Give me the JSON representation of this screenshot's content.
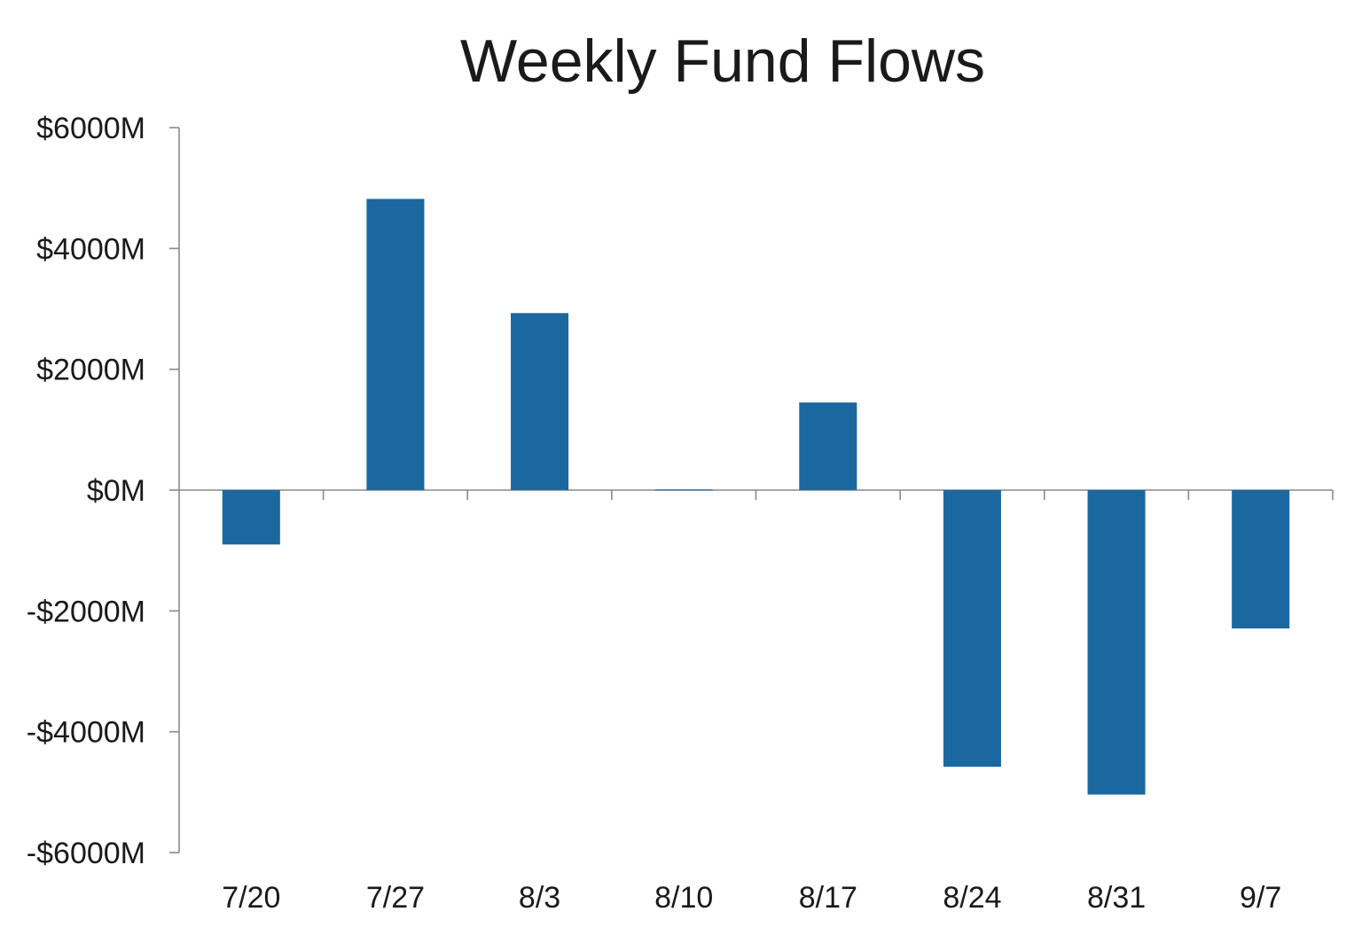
{
  "chart_data": {
    "type": "bar",
    "title": "Weekly Fund Flows",
    "xlabel": "",
    "ylabel": "",
    "categories": [
      "7/20",
      "7/27",
      "8/3",
      "8/10",
      "8/17",
      "8/24",
      "8/31",
      "9/7"
    ],
    "values": [
      -900,
      4820,
      2930,
      10,
      1450,
      -4580,
      -5040,
      -2290
    ],
    "unit": "M",
    "ylim": [
      -6000,
      6000
    ],
    "yticks": [
      6000,
      4000,
      2000,
      0,
      -2000,
      -4000,
      -6000
    ],
    "ytick_labels": [
      "$6000M",
      "$4000M",
      "$2000M",
      "$0M",
      "-$2000M",
      "-$4000M",
      "-$6000M"
    ],
    "bar_color": "#1b68a0",
    "grid": false,
    "legend": "none"
  }
}
